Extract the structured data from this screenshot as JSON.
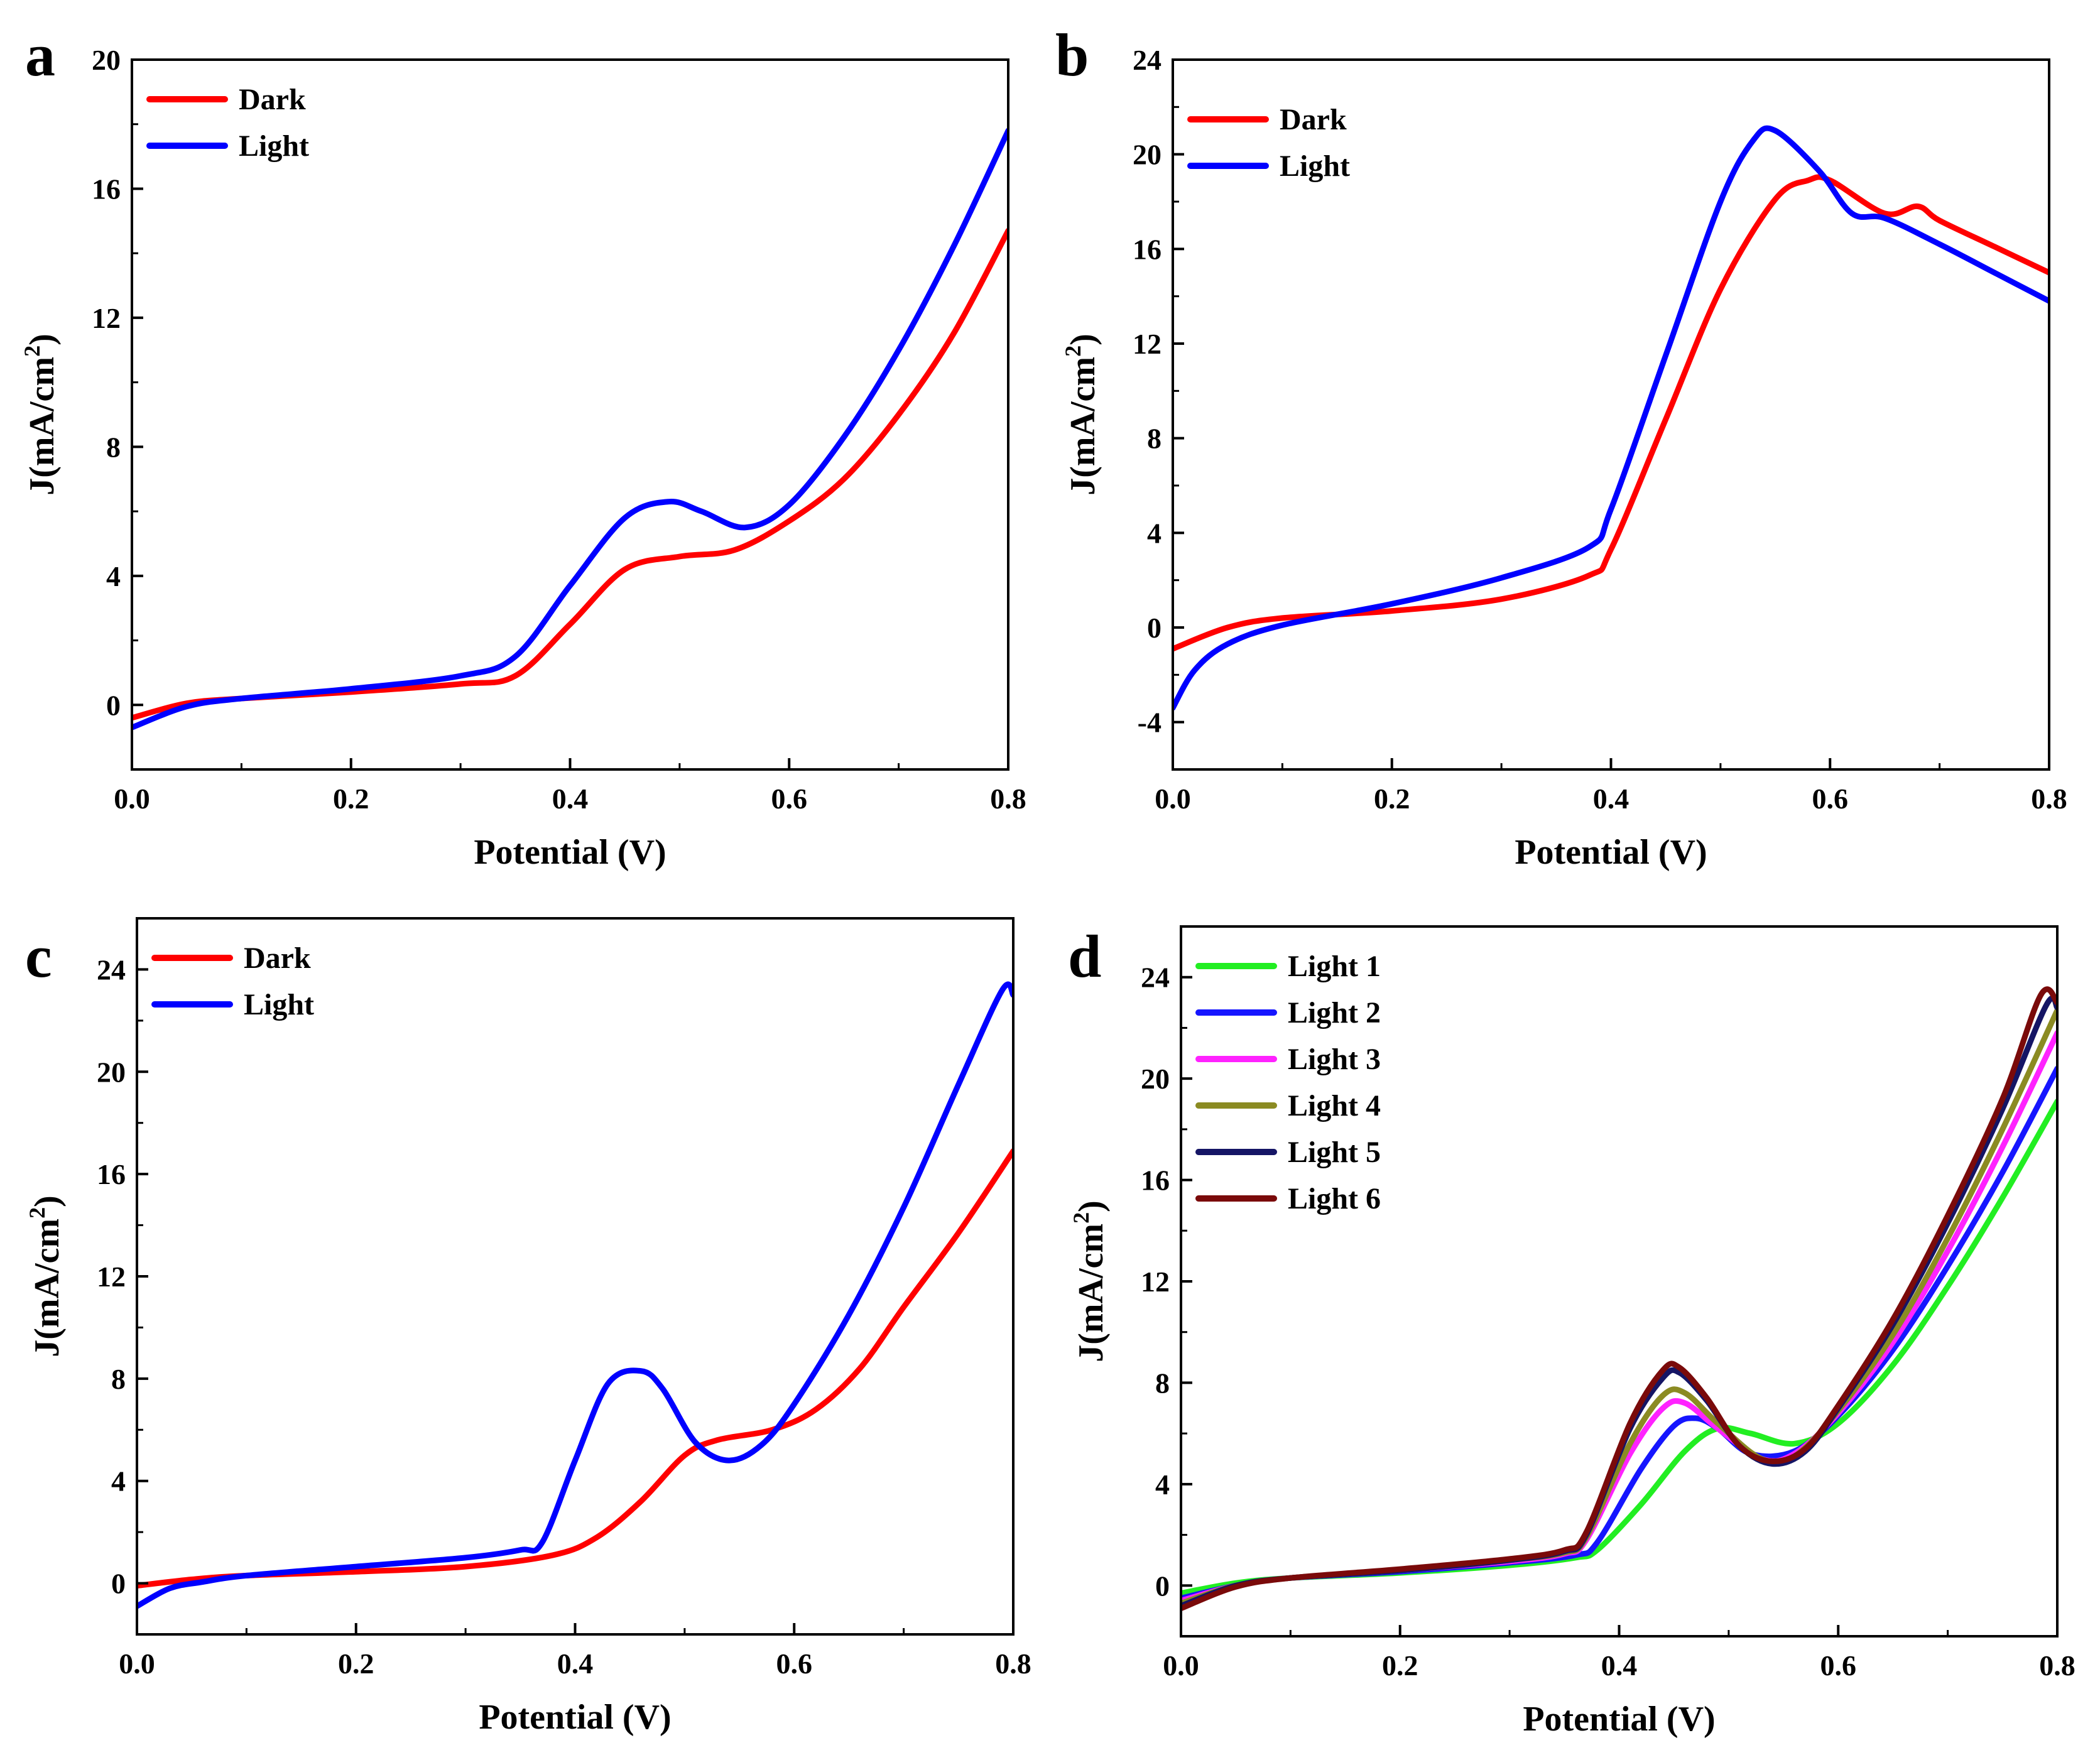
{
  "chart_data": [
    {
      "panel": "a",
      "type": "line",
      "xlabel": "Potential (V)",
      "ylabel_main": "J(mA/cm",
      "ylabel_sup": "2",
      "ylabel_close": ")",
      "xlim": [
        0.0,
        0.8
      ],
      "ylim": [
        -2,
        20
      ],
      "xticks": [
        "0.0",
        "0.2",
        "0.4",
        "0.6",
        "0.8"
      ],
      "yticks": [
        "0",
        "4",
        "8",
        "12",
        "16",
        "20"
      ],
      "legend": "top-left",
      "series": [
        {
          "name": "Dark",
          "color": "#ff0000",
          "x": [
            0.0,
            0.05,
            0.1,
            0.2,
            0.3,
            0.35,
            0.4,
            0.45,
            0.5,
            0.55,
            0.6,
            0.65,
            0.7,
            0.75,
            0.8
          ],
          "y": [
            -0.4,
            0.05,
            0.2,
            0.4,
            0.65,
            0.9,
            2.5,
            4.2,
            4.6,
            4.8,
            5.7,
            7.0,
            9.0,
            11.5,
            14.7
          ]
        },
        {
          "name": "Light",
          "color": "#0000ff",
          "x": [
            0.0,
            0.05,
            0.1,
            0.2,
            0.3,
            0.35,
            0.4,
            0.45,
            0.49,
            0.52,
            0.56,
            0.6,
            0.65,
            0.7,
            0.75,
            0.8
          ],
          "y": [
            -0.7,
            -0.05,
            0.2,
            0.5,
            0.9,
            1.5,
            3.7,
            5.8,
            6.3,
            6.0,
            5.5,
            6.2,
            8.3,
            11.0,
            14.2,
            17.8
          ]
        }
      ]
    },
    {
      "panel": "b",
      "type": "line",
      "xlabel": "Potential (V)",
      "ylabel_main": "J(mA/cm",
      "ylabel_sup": "2",
      "ylabel_close": ")",
      "xlim": [
        0.0,
        0.8
      ],
      "ylim": [
        -6,
        24
      ],
      "xticks": [
        "0.0",
        "0.2",
        "0.4",
        "0.6",
        "0.8"
      ],
      "yticks": [
        "-4",
        "0",
        "4",
        "8",
        "12",
        "16",
        "20",
        "24"
      ],
      "legend": "top-left",
      "series": [
        {
          "name": "Dark",
          "color": "#ff0000",
          "x": [
            0.0,
            0.05,
            0.1,
            0.2,
            0.3,
            0.38,
            0.4,
            0.45,
            0.5,
            0.55,
            0.58,
            0.6,
            0.65,
            0.68,
            0.7,
            0.75,
            0.8
          ],
          "y": [
            -0.9,
            0.0,
            0.4,
            0.7,
            1.2,
            2.2,
            3.3,
            8.8,
            14.3,
            18.1,
            18.9,
            18.9,
            17.5,
            17.8,
            17.2,
            16.1,
            15.0
          ]
        },
        {
          "name": "Light",
          "color": "#0000ff",
          "x": [
            0.0,
            0.02,
            0.05,
            0.1,
            0.2,
            0.3,
            0.38,
            0.4,
            0.45,
            0.5,
            0.53,
            0.55,
            0.59,
            0.62,
            0.65,
            0.7,
            0.75,
            0.8
          ],
          "y": [
            -3.4,
            -1.8,
            -0.7,
            0.1,
            1.0,
            2.1,
            3.4,
            5.0,
            11.5,
            18.0,
            20.6,
            21.0,
            19.3,
            17.5,
            17.3,
            16.2,
            15.0,
            13.8
          ]
        }
      ]
    },
    {
      "panel": "c",
      "type": "line",
      "xlabel": "Potential (V)",
      "ylabel_main": "J(mA/cm",
      "ylabel_sup": "2",
      "ylabel_close": ")",
      "xlim": [
        0.0,
        0.8
      ],
      "ylim": [
        -2,
        26
      ],
      "xticks": [
        "0.0",
        "0.2",
        "0.4",
        "0.6",
        "0.8"
      ],
      "yticks": [
        "0",
        "4",
        "8",
        "12",
        "16",
        "20",
        "24"
      ],
      "legend": "top-left",
      "series": [
        {
          "name": "Dark",
          "color": "#ff0000",
          "x": [
            0.0,
            0.05,
            0.1,
            0.2,
            0.3,
            0.38,
            0.42,
            0.46,
            0.5,
            0.53,
            0.58,
            0.62,
            0.66,
            0.7,
            0.75,
            0.8
          ],
          "y": [
            -0.1,
            0.15,
            0.3,
            0.45,
            0.65,
            1.1,
            1.8,
            3.2,
            5.0,
            5.6,
            6.0,
            6.8,
            8.4,
            10.8,
            13.7,
            16.9
          ]
        },
        {
          "name": "Light",
          "color": "#0000ff",
          "x": [
            0.0,
            0.03,
            0.06,
            0.1,
            0.2,
            0.3,
            0.35,
            0.37,
            0.4,
            0.43,
            0.46,
            0.48,
            0.51,
            0.54,
            0.57,
            0.6,
            0.65,
            0.7,
            0.75,
            0.79,
            0.8
          ],
          "y": [
            -0.9,
            -0.2,
            0.05,
            0.3,
            0.65,
            1.0,
            1.3,
            1.6,
            4.8,
            7.8,
            8.3,
            7.6,
            5.5,
            4.8,
            5.4,
            7.0,
            10.5,
            14.7,
            19.5,
            23.2,
            23.0
          ]
        }
      ]
    },
    {
      "panel": "d",
      "type": "line",
      "xlabel": "Potential (V)",
      "ylabel_main": "J(mA/cm",
      "ylabel_sup": "2",
      "ylabel_close": ")",
      "xlim": [
        0.0,
        0.8
      ],
      "ylim": [
        -2,
        26
      ],
      "xticks": [
        "0.0",
        "0.2",
        "0.4",
        "0.6",
        "0.8"
      ],
      "yticks": [
        "0",
        "4",
        "8",
        "12",
        "16",
        "20",
        "24"
      ],
      "legend": "top-left",
      "series": [
        {
          "name": "Light 1",
          "color": "#22ee22",
          "x": [
            0.0,
            0.05,
            0.1,
            0.2,
            0.3,
            0.36,
            0.38,
            0.42,
            0.46,
            0.49,
            0.52,
            0.56,
            0.6,
            0.65,
            0.7,
            0.75,
            0.8
          ],
          "y": [
            -0.3,
            0.1,
            0.3,
            0.5,
            0.8,
            1.1,
            1.4,
            3.2,
            5.3,
            6.2,
            6.0,
            5.6,
            6.4,
            8.7,
            11.8,
            15.3,
            19.1
          ]
        },
        {
          "name": "Light 2",
          "color": "#1515ff",
          "x": [
            0.0,
            0.05,
            0.1,
            0.2,
            0.3,
            0.36,
            0.38,
            0.42,
            0.45,
            0.47,
            0.49,
            0.52,
            0.56,
            0.6,
            0.65,
            0.7,
            0.75,
            0.8
          ],
          "y": [
            -0.5,
            0.0,
            0.3,
            0.55,
            0.9,
            1.2,
            1.7,
            4.6,
            6.3,
            6.6,
            6.2,
            5.2,
            5.3,
            6.7,
            9.3,
            12.6,
            16.3,
            20.4
          ]
        },
        {
          "name": "Light 3",
          "color": "#ff22ff",
          "x": [
            0.0,
            0.05,
            0.1,
            0.2,
            0.3,
            0.35,
            0.37,
            0.41,
            0.44,
            0.46,
            0.49,
            0.53,
            0.56,
            0.6,
            0.65,
            0.7,
            0.75,
            0.8
          ],
          "y": [
            -0.6,
            0.0,
            0.3,
            0.6,
            0.95,
            1.25,
            1.8,
            5.2,
            7.0,
            7.2,
            6.2,
            5.0,
            5.2,
            6.8,
            9.6,
            13.2,
            17.3,
            21.8
          ]
        },
        {
          "name": "Light 4",
          "color": "#8b8b22",
          "x": [
            0.0,
            0.05,
            0.1,
            0.2,
            0.3,
            0.35,
            0.37,
            0.41,
            0.44,
            0.46,
            0.49,
            0.53,
            0.56,
            0.6,
            0.65,
            0.7,
            0.75,
            0.8
          ],
          "y": [
            -0.7,
            0.0,
            0.3,
            0.6,
            1.0,
            1.3,
            1.9,
            5.6,
            7.5,
            7.6,
            6.4,
            5.0,
            5.1,
            6.9,
            9.9,
            13.7,
            18.0,
            22.7
          ]
        },
        {
          "name": "Light 5",
          "color": "#151565",
          "x": [
            0.0,
            0.05,
            0.1,
            0.2,
            0.3,
            0.35,
            0.37,
            0.41,
            0.44,
            0.455,
            0.48,
            0.51,
            0.54,
            0.57,
            0.6,
            0.65,
            0.7,
            0.75,
            0.79,
            0.8
          ],
          "y": [
            -0.8,
            0.0,
            0.3,
            0.6,
            1.0,
            1.35,
            2.0,
            6.2,
            8.2,
            8.4,
            7.3,
            5.5,
            4.8,
            5.3,
            7.0,
            10.3,
            14.3,
            18.8,
            22.9,
            22.8
          ]
        },
        {
          "name": "Light 6",
          "color": "#7a0a0a",
          "x": [
            0.0,
            0.05,
            0.1,
            0.2,
            0.3,
            0.35,
            0.37,
            0.41,
            0.44,
            0.455,
            0.48,
            0.51,
            0.54,
            0.57,
            0.6,
            0.65,
            0.7,
            0.75,
            0.785,
            0.8
          ],
          "y": [
            -0.9,
            -0.05,
            0.3,
            0.65,
            1.05,
            1.4,
            2.1,
            6.4,
            8.5,
            8.6,
            7.4,
            5.5,
            4.9,
            5.4,
            7.1,
            10.5,
            14.6,
            19.2,
            23.3,
            23.0
          ]
        }
      ]
    }
  ]
}
